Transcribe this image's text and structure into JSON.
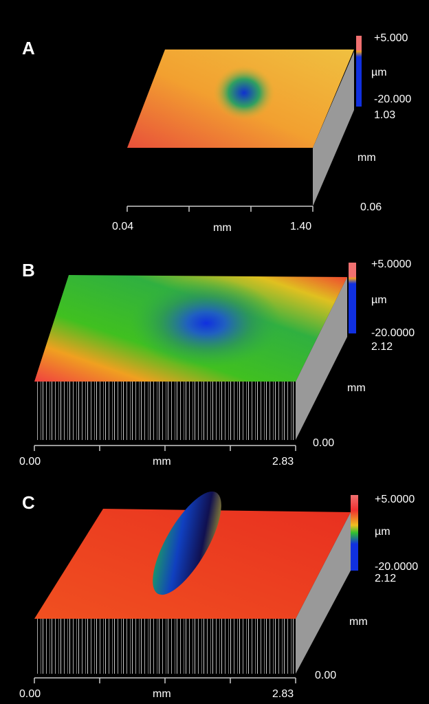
{
  "panels": [
    {
      "label": "A",
      "scale_top": "+5.000",
      "scale_unit": "µm",
      "scale_bottom": "-20.000",
      "y_max": "1.03",
      "y_unit": "mm",
      "y_min": "0.06",
      "x_min": "0.04",
      "x_unit": "mm",
      "x_max": "1.40"
    },
    {
      "label": "B",
      "scale_top": "+5.0000",
      "scale_unit": "µm",
      "scale_bottom": "-20.0000",
      "y_max": "2.12",
      "y_unit": "mm",
      "y_min": "0.00",
      "x_min": "0.00",
      "x_unit": "mm",
      "x_max": "2.83"
    },
    {
      "label": "C",
      "scale_top": "+5.0000",
      "scale_unit": "µm",
      "scale_bottom": "-20.0000",
      "y_max": "2.12",
      "y_unit": "mm",
      "y_min": "0.00",
      "x_min": "0.00",
      "x_unit": "mm",
      "x_max": "2.83"
    }
  ]
}
